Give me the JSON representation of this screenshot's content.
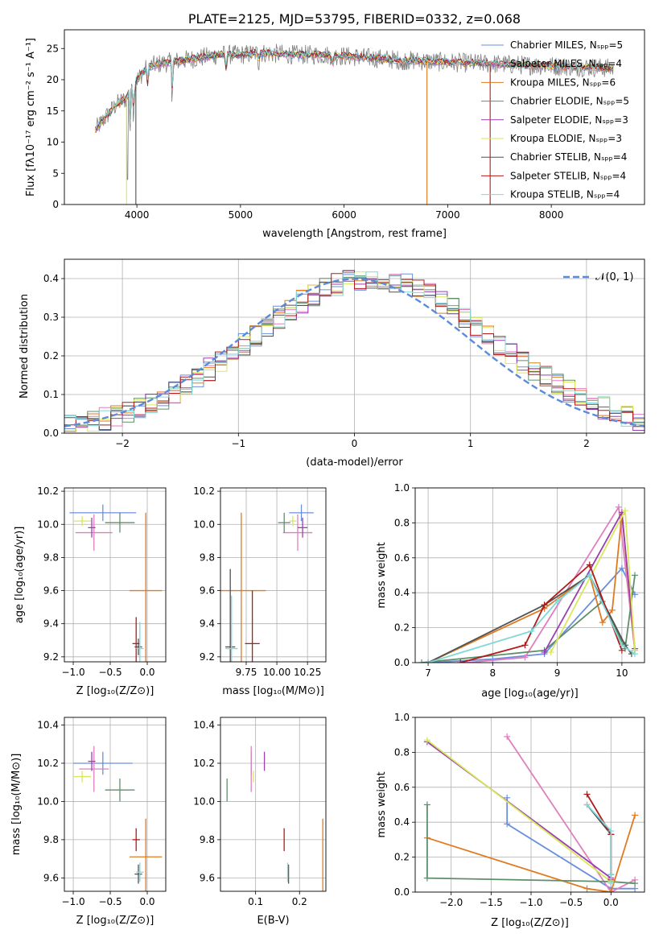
{
  "palette": {
    "Chabrier MILES": "#6a8fe0",
    "Salpeter MILES": "#e07fbf",
    "Kroupa MILES": "#e07a1f",
    "Chabrier ELODIE": "#5f8f6a",
    "Salpeter ELODIE": "#9a3fb0",
    "Kroupa ELODIE": "#d8e85a",
    "Chabrier STELIB": "#505050",
    "Salpeter STELIB": "#b21a1a",
    "Kroupa STELIB": "#7fd8d8"
  },
  "chart_data": [
    {
      "id": "spectrum",
      "type": "line",
      "title": "PLATE=2125, MJD=53795, FIBERID=0332, z=0.068",
      "xlabel": "wavelength [Angstrom, rest frame]",
      "ylabel": "Flux [fλ10⁻¹⁷ erg cm⁻² s⁻¹ A⁻¹]",
      "xlim": [
        3300,
        8900
      ],
      "ylim": [
        0,
        28
      ],
      "xticks": [
        "4000",
        "5000",
        "6000",
        "7000",
        "8000"
      ],
      "yticks": [
        "0",
        "5",
        "10",
        "15",
        "20",
        "25"
      ],
      "grid": false,
      "legend_position": "right",
      "legend": [
        "Chabrier MILES, Nₛₚₚ=5",
        "Salpeter MILES, Nₛₚₚ=4",
        "Kroupa MILES, Nₛₚₚ=6",
        "Chabrier ELODIE, Nₛₚₚ=5",
        "Salpeter ELODIE, Nₛₚₚ=3",
        "Kroupa ELODIE, Nₛₚₚ=3",
        "Chabrier STELIB, Nₛₚₚ=4",
        "Salpeter STELIB, Nₛₚₚ=4",
        "Kroupa STELIB, Nₛₚₚ=4"
      ],
      "continuum": [
        [
          3600,
          12
        ],
        [
          3700,
          14
        ],
        [
          3800,
          16
        ],
        [
          3900,
          17
        ],
        [
          3950,
          19
        ],
        [
          4000,
          20
        ],
        [
          4100,
          22
        ],
        [
          4200,
          22.5
        ],
        [
          4400,
          23
        ],
        [
          4600,
          23.5
        ],
        [
          4800,
          24
        ],
        [
          5000,
          24
        ],
        [
          5200,
          24.3
        ],
        [
          5500,
          24
        ],
        [
          5800,
          24
        ],
        [
          6000,
          23.8
        ],
        [
          6500,
          23.2
        ],
        [
          7000,
          22.8
        ],
        [
          7500,
          22.5
        ],
        [
          8000,
          22.2
        ],
        [
          8400,
          22
        ],
        [
          8600,
          21.8
        ]
      ]
    },
    {
      "id": "residuals",
      "type": "area",
      "xlabel": "(data-model)/error",
      "ylabel": "Normed distribution",
      "xlim": [
        -2.5,
        2.5
      ],
      "ylim": [
        0,
        0.45
      ],
      "xticks": [
        "−2",
        "−1",
        "0",
        "1",
        "2"
      ],
      "yticks": [
        "0.0",
        "0.1",
        "0.2",
        "0.3",
        "0.4"
      ],
      "grid": true,
      "legend": [
        "𝒩(0, 1)"
      ],
      "legend_position": "top-right",
      "bin_width": 0.1
    },
    {
      "id": "age_vs_Z",
      "type": "scatter",
      "xlabel": "Z [log₁₀(Z/Z⊙)]",
      "ylabel": "age  [log₁₀(age/yr)]",
      "xlim": [
        -1.12,
        0.25
      ],
      "ylim": [
        9.17,
        10.22
      ],
      "xticks": [
        "−1.0",
        "−0.5",
        "0.0"
      ],
      "yticks": [
        "9.2",
        "9.4",
        "9.6",
        "9.8",
        "10.0",
        "10.2"
      ],
      "grid": true,
      "points": [
        {
          "model": "Chabrier MILES",
          "x": -0.6,
          "y": 10.07,
          "xerr": 0.45,
          "yerr": 0.05
        },
        {
          "model": "Salpeter MILES",
          "x": -0.72,
          "y": 9.95,
          "xerr": 0.25,
          "yerr": 0.11
        },
        {
          "model": "Kroupa MILES",
          "x": -0.02,
          "y": 9.6,
          "xerr": 0.22,
          "yerr": 0.47
        },
        {
          "model": "Chabrier ELODIE",
          "x": -0.37,
          "y": 10.01,
          "xerr": 0.2,
          "yerr": 0.06
        },
        {
          "model": "Salpeter ELODIE",
          "x": -0.75,
          "y": 9.98,
          "xerr": 0.05,
          "yerr": 0.06
        },
        {
          "model": "Kroupa ELODIE",
          "x": -0.88,
          "y": 10.02,
          "xerr": 0.12,
          "yerr": 0.03
        },
        {
          "model": "Chabrier STELIB",
          "x": -0.12,
          "y": 9.26,
          "xerr": 0.05,
          "yerr": 0.05
        },
        {
          "model": "Salpeter STELIB",
          "x": -0.15,
          "y": 9.28,
          "xerr": 0.05,
          "yerr": 0.16
        },
        {
          "model": "Kroupa STELIB",
          "x": -0.1,
          "y": 9.25,
          "xerr": 0.05,
          "yerr": 0.16
        }
      ]
    },
    {
      "id": "age_vs_mass",
      "type": "scatter",
      "xlabel": "mass [log₁₀(M/M⊙)]",
      "ylabel": "",
      "xlim": [
        9.54,
        10.4
      ],
      "ylim": [
        9.17,
        10.22
      ],
      "xticks": [
        "9.75",
        "10.00",
        "10.25"
      ],
      "yticks": [
        "9.2",
        "9.4",
        "9.6",
        "9.8",
        "10.0",
        "10.2"
      ],
      "grid": true,
      "points": [
        {
          "model": "Chabrier MILES",
          "x": 10.2,
          "y": 10.07,
          "xerr": 0.1,
          "yerr": 0.05
        },
        {
          "model": "Salpeter MILES",
          "x": 10.17,
          "y": 9.95,
          "xerr": 0.12,
          "yerr": 0.11
        },
        {
          "model": "Kroupa MILES",
          "x": 9.71,
          "y": 9.6,
          "xerr": 0.2,
          "yerr": 0.47
        },
        {
          "model": "Chabrier ELODIE",
          "x": 10.06,
          "y": 10.01,
          "xerr": 0.05,
          "yerr": 0.06
        },
        {
          "model": "Salpeter ELODIE",
          "x": 10.21,
          "y": 9.98,
          "xerr": 0.04,
          "yerr": 0.06
        },
        {
          "model": "Kroupa ELODIE",
          "x": 10.13,
          "y": 10.02,
          "xerr": 0.03,
          "yerr": 0.03
        },
        {
          "model": "Chabrier STELIB",
          "x": 9.62,
          "y": 9.26,
          "xerr": 0.04,
          "yerr": 0.47
        },
        {
          "model": "Salpeter STELIB",
          "x": 9.8,
          "y": 9.28,
          "xerr": 0.06,
          "yerr": 0.32
        },
        {
          "model": "Kroupa STELIB",
          "x": 9.63,
          "y": 9.25,
          "xerr": 0.05,
          "yerr": 0.32
        }
      ]
    },
    {
      "id": "massweight_vs_age",
      "type": "line",
      "xlabel": "age  [log₁₀(age/yr)]",
      "ylabel": "mass weight",
      "xlim": [
        6.8,
        10.35
      ],
      "ylim": [
        0,
        1.0
      ],
      "xticks": [
        "7",
        "8",
        "9",
        "10"
      ],
      "yticks": [
        "0.0",
        "0.2",
        "0.4",
        "0.6",
        "0.8",
        "1.0"
      ],
      "grid": true,
      "series": [
        {
          "model": "Chabrier MILES",
          "points": [
            [
              7.0,
              0.0
            ],
            [
              8.0,
              0.02
            ],
            [
              8.8,
              0.05
            ],
            [
              10.0,
              0.54
            ],
            [
              10.2,
              0.39
            ]
          ]
        },
        {
          "model": "Salpeter MILES",
          "points": [
            [
              7.6,
              0.0
            ],
            [
              8.5,
              0.03
            ],
            [
              9.95,
              0.89
            ],
            [
              10.2,
              0.07
            ]
          ]
        },
        {
          "model": "Kroupa MILES",
          "points": [
            [
              7.0,
              0.0
            ],
            [
              8.8,
              0.31
            ],
            [
              9.5,
              0.5
            ],
            [
              9.7,
              0.23
            ],
            [
              9.85,
              0.3
            ],
            [
              10.0,
              0.85
            ],
            [
              10.2,
              0.07
            ]
          ]
        },
        {
          "model": "Chabrier ELODIE",
          "points": [
            [
              6.9,
              0.0
            ],
            [
              8.8,
              0.07
            ],
            [
              9.7,
              0.35
            ],
            [
              10.05,
              0.08
            ],
            [
              10.2,
              0.5
            ]
          ]
        },
        {
          "model": "Salpeter ELODIE",
          "points": [
            [
              8.8,
              0.06
            ],
            [
              10.0,
              0.86
            ],
            [
              10.2,
              0.08
            ]
          ]
        },
        {
          "model": "Kroupa ELODIE",
          "points": [
            [
              8.9,
              0.06
            ],
            [
              10.05,
              0.87
            ],
            [
              10.2,
              0.07
            ]
          ]
        },
        {
          "model": "Chabrier STELIB",
          "points": [
            [
              7.0,
              0.0
            ],
            [
              8.8,
              0.33
            ],
            [
              9.5,
              0.5
            ],
            [
              10.05,
              0.1
            ],
            [
              10.15,
              0.05
            ]
          ]
        },
        {
          "model": "Salpeter STELIB",
          "points": [
            [
              7.5,
              0.0
            ],
            [
              8.5,
              0.1
            ],
            [
              8.8,
              0.33
            ],
            [
              9.5,
              0.56
            ],
            [
              10.0,
              0.07
            ]
          ]
        },
        {
          "model": "Kroupa STELIB",
          "points": [
            [
              7.0,
              0.0
            ],
            [
              8.6,
              0.18
            ],
            [
              9.0,
              0.35
            ],
            [
              9.5,
              0.5
            ],
            [
              10.0,
              0.1
            ],
            [
              10.2,
              0.05
            ]
          ]
        }
      ]
    },
    {
      "id": "mass_vs_Z",
      "type": "scatter",
      "xlabel": "Z [log₁₀(Z/Z⊙)]",
      "ylabel": "mass [log₁₀(M/M⊙)]",
      "xlim": [
        -1.12,
        0.25
      ],
      "ylim": [
        9.53,
        10.44
      ],
      "xticks": [
        "−1.0",
        "−0.5",
        "0.0"
      ],
      "yticks": [
        "9.6",
        "9.8",
        "10.0",
        "10.2",
        "10.4"
      ],
      "grid": true,
      "points": [
        {
          "model": "Chabrier MILES",
          "x": -0.6,
          "y": 10.2,
          "xerr": 0.4,
          "yerr": 0.06
        },
        {
          "model": "Salpeter MILES",
          "x": -0.72,
          "y": 10.17,
          "xerr": 0.2,
          "yerr": 0.12
        },
        {
          "model": "Kroupa MILES",
          "x": -0.02,
          "y": 9.71,
          "xerr": 0.22,
          "yerr": 0.2
        },
        {
          "model": "Chabrier ELODIE",
          "x": -0.37,
          "y": 10.06,
          "xerr": 0.2,
          "yerr": 0.06
        },
        {
          "model": "Salpeter ELODIE",
          "x": -0.75,
          "y": 10.21,
          "xerr": 0.05,
          "yerr": 0.05
        },
        {
          "model": "Kroupa ELODIE",
          "x": -0.88,
          "y": 10.13,
          "xerr": 0.12,
          "yerr": 0.03
        },
        {
          "model": "Chabrier STELIB",
          "x": -0.12,
          "y": 9.62,
          "xerr": 0.05,
          "yerr": 0.05
        },
        {
          "model": "Salpeter STELIB",
          "x": -0.15,
          "y": 9.8,
          "xerr": 0.05,
          "yerr": 0.06
        },
        {
          "model": "Kroupa STELIB",
          "x": -0.1,
          "y": 9.63,
          "xerr": 0.05,
          "yerr": 0.05
        }
      ]
    },
    {
      "id": "mass_vs_ebv",
      "type": "scatter",
      "xlabel": "E(B-V)",
      "ylabel": "",
      "xlim": [
        0.02,
        0.26
      ],
      "ylim": [
        9.53,
        10.44
      ],
      "xticks": [
        "0.1",
        "0.2"
      ],
      "yticks": [
        "9.6",
        "9.8",
        "10.0",
        "10.2",
        "10.4"
      ],
      "grid": true,
      "points": [
        {
          "model": "Chabrier MILES",
          "x": 0.09,
          "y": 10.2,
          "xerr": 0.0,
          "yerr": 0.06
        },
        {
          "model": "Salpeter MILES",
          "x": 0.09,
          "y": 10.17,
          "xerr": 0.0,
          "yerr": 0.12
        },
        {
          "model": "Kroupa MILES",
          "x": 0.253,
          "y": 9.71,
          "xerr": 0.0,
          "yerr": 0.2
        },
        {
          "model": "Chabrier ELODIE",
          "x": 0.035,
          "y": 10.06,
          "xerr": 0.0,
          "yerr": 0.06
        },
        {
          "model": "Salpeter ELODIE",
          "x": 0.12,
          "y": 10.21,
          "xerr": 0.0,
          "yerr": 0.05
        },
        {
          "model": "Kroupa ELODIE",
          "x": 0.095,
          "y": 10.13,
          "xerr": 0.0,
          "yerr": 0.03
        },
        {
          "model": "Chabrier STELIB",
          "x": 0.175,
          "y": 9.62,
          "xerr": 0.0,
          "yerr": 0.05
        },
        {
          "model": "Salpeter STELIB",
          "x": 0.165,
          "y": 9.8,
          "xerr": 0.0,
          "yerr": 0.06
        },
        {
          "model": "Kroupa STELIB",
          "x": 0.173,
          "y": 9.63,
          "xerr": 0.0,
          "yerr": 0.05
        }
      ]
    },
    {
      "id": "massweight_vs_Z",
      "type": "line",
      "xlabel": "Z [log₁₀(Z/Z⊙)]",
      "ylabel": "mass weight",
      "xlim": [
        -2.45,
        0.42
      ],
      "ylim": [
        0,
        1.0
      ],
      "xticks": [
        "−2.0",
        "−1.5",
        "−1.0",
        "−0.5",
        "0.0"
      ],
      "yticks": [
        "0.0",
        "0.2",
        "0.4",
        "0.6",
        "0.8",
        "1.0"
      ],
      "grid": true,
      "series": [
        {
          "model": "Chabrier MILES",
          "points": [
            [
              -1.3,
              0.54
            ],
            [
              -1.3,
              0.39
            ],
            [
              0.0,
              0.02
            ],
            [
              0.3,
              0.02
            ]
          ]
        },
        {
          "model": "Salpeter MILES",
          "points": [
            [
              -1.3,
              0.89
            ],
            [
              0.0,
              0.0
            ],
            [
              0.3,
              0.07
            ]
          ]
        },
        {
          "model": "Kroupa MILES",
          "points": [
            [
              -2.3,
              0.31
            ],
            [
              -0.3,
              0.02
            ],
            [
              0.0,
              0.0
            ],
            [
              0.3,
              0.44
            ],
            [
              0.0,
              0.0
            ]
          ]
        },
        {
          "model": "Chabrier ELODIE",
          "points": [
            [
              -2.3,
              0.5
            ],
            [
              -2.3,
              0.08
            ],
            [
              0.0,
              0.06
            ],
            [
              0.3,
              0.05
            ]
          ]
        },
        {
          "model": "Salpeter ELODIE",
          "points": [
            [
              -2.3,
              0.86
            ],
            [
              0.0,
              0.08
            ]
          ]
        },
        {
          "model": "Kroupa ELODIE",
          "points": [
            [
              -2.3,
              0.87
            ],
            [
              0.0,
              0.06
            ]
          ]
        },
        {
          "model": "Chabrier STELIB",
          "points": [
            [
              -0.3,
              0.5
            ],
            [
              0.0,
              0.33
            ],
            [
              0.0,
              0.1
            ]
          ]
        },
        {
          "model": "Salpeter STELIB",
          "points": [
            [
              -0.3,
              0.56
            ],
            [
              0.0,
              0.33
            ],
            [
              0.0,
              0.07
            ]
          ]
        },
        {
          "model": "Kroupa STELIB",
          "points": [
            [
              -0.3,
              0.5
            ],
            [
              0.0,
              0.35
            ],
            [
              0.0,
              0.1
            ],
            [
              0.0,
              0.05
            ]
          ]
        }
      ]
    }
  ]
}
